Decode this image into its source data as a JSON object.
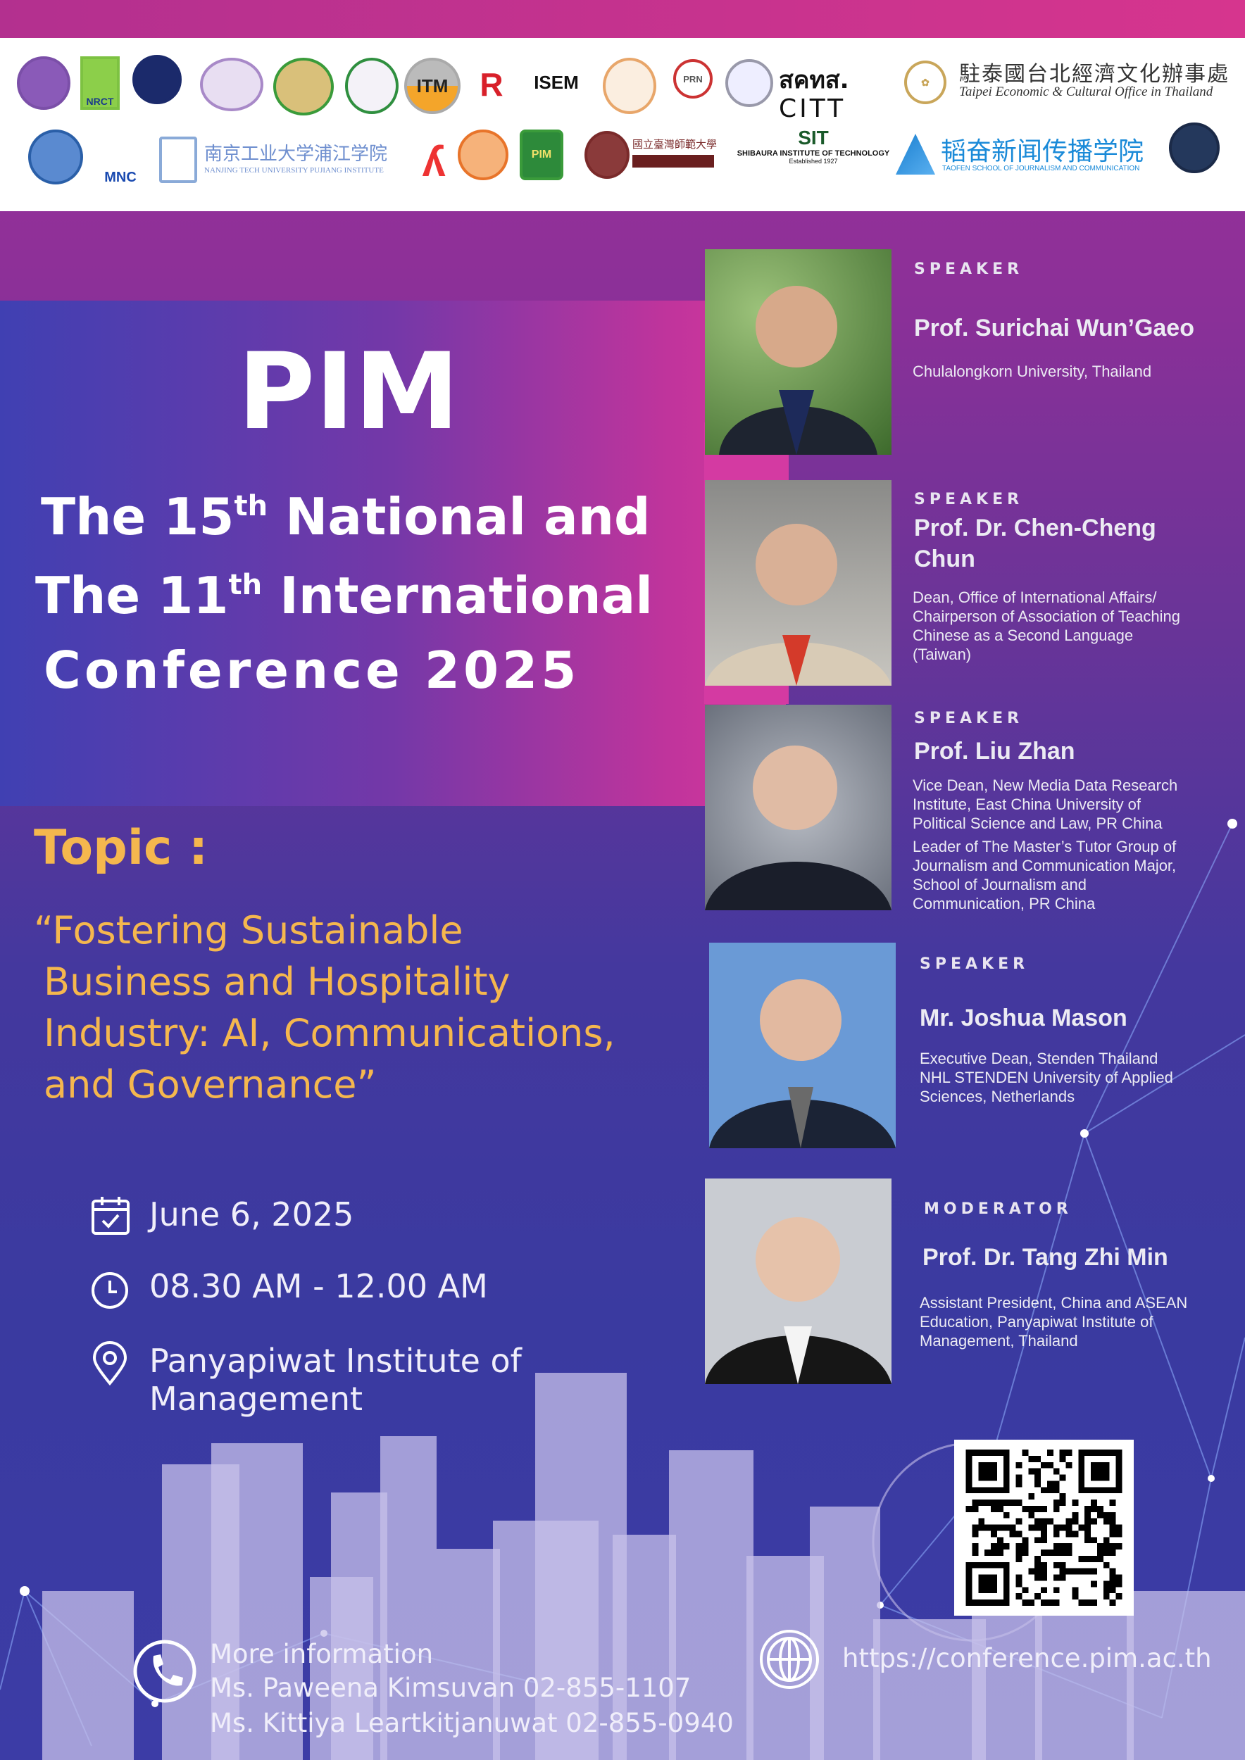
{
  "logos": {
    "nrct": "NRCT",
    "itm": "ITM",
    "isem": "ISEM",
    "prn": "PRN",
    "citt_th": "สคทส.",
    "citt": "CITT",
    "teco_zh": "駐泰國台北經濟文化辦事處",
    "teco_en": "Taipei Economic & Cultural Office in Thailand",
    "mnc": "MNC",
    "nanjing_zh": "南京工业大学浦江学院",
    "nanjing_en": "NANJING TECH UNIVERSITY PUJIANG INSTITUTE",
    "pim": "PIM",
    "ntnu_zh": "國立臺灣師範大學",
    "sit": "SIT",
    "sit_en": "SHIBAURA INSTITUTE OF TECHNOLOGY",
    "sit_est": "Established 1927",
    "taofen_zh": "韬奋新闻传播学院",
    "taofen_en": "TAOFEN SCHOOL OF JOURNALISM AND COMMUNICATION"
  },
  "event": {
    "org": "PIM",
    "line1_pre": "The 15",
    "line1_sup": "th",
    "line1_post": " National and",
    "line2_pre": "The 11",
    "line2_sup": "th",
    "line2_post": " International",
    "line3": "Conference 2025"
  },
  "topic": {
    "label": "Topic :",
    "lines": [
      "“Fostering Sustainable",
      "Business and Hospitality",
      "Industry: AI, Communications,",
      "and  Governance”"
    ]
  },
  "details": {
    "date": "June 6, 2025",
    "time": "08.30 AM - 12.00 AM",
    "venue": [
      "Panyapiwat Institute of",
      "Management"
    ]
  },
  "speakers": [
    {
      "role": "SPEAKER",
      "name": "Prof. Surichai Wun’Gaeo",
      "aff": [
        "Chulalongkorn University, Thailand"
      ]
    },
    {
      "role": "SPEAKER",
      "name": "Prof. Dr. Chen-Cheng Chun",
      "aff": [
        "Dean, Office of International Affairs/",
        "Chairperson of Association of Teaching",
        "Chinese as a Second Language",
        "(Taiwan)"
      ]
    },
    {
      "role": "SPEAKER",
      "name": "Prof. Liu Zhan",
      "aff": [
        "Vice Dean, New Media Data Research",
        "Institute, East China University of",
        "Political  Science and Law, PR China"
      ],
      "aff2": [
        "Leader of The Master’s Tutor Group of",
        "Journalism and Communication Major,",
        "School of Journalism and",
        "Communication, PR China"
      ]
    },
    {
      "role": "SPEAKER",
      "name": "Mr. Joshua Mason",
      "aff": [
        "Executive Dean, Stenden Thailand",
        "NHL STENDEN University of Applied",
        "Sciences, Netherlands"
      ]
    },
    {
      "role": "MODERATOR",
      "name": "Prof. Dr. Tang Zhi Min",
      "aff": [
        "Assistant President, China and ASEAN",
        "Education, Panyapiwat Institute of",
        "Management, Thailand"
      ]
    }
  ],
  "contact": {
    "heading": "More information",
    "people": [
      "Ms. Paweena Kimsuvan 02-855-1107",
      "Ms. Kittiya Leartkitjanuwat 02-855-0940"
    ],
    "url": "https://conference.pim.ac.th"
  },
  "colors": {
    "accent": "#f5b74e",
    "magenta": "#d6358e",
    "indigo": "#3a3aa0"
  }
}
